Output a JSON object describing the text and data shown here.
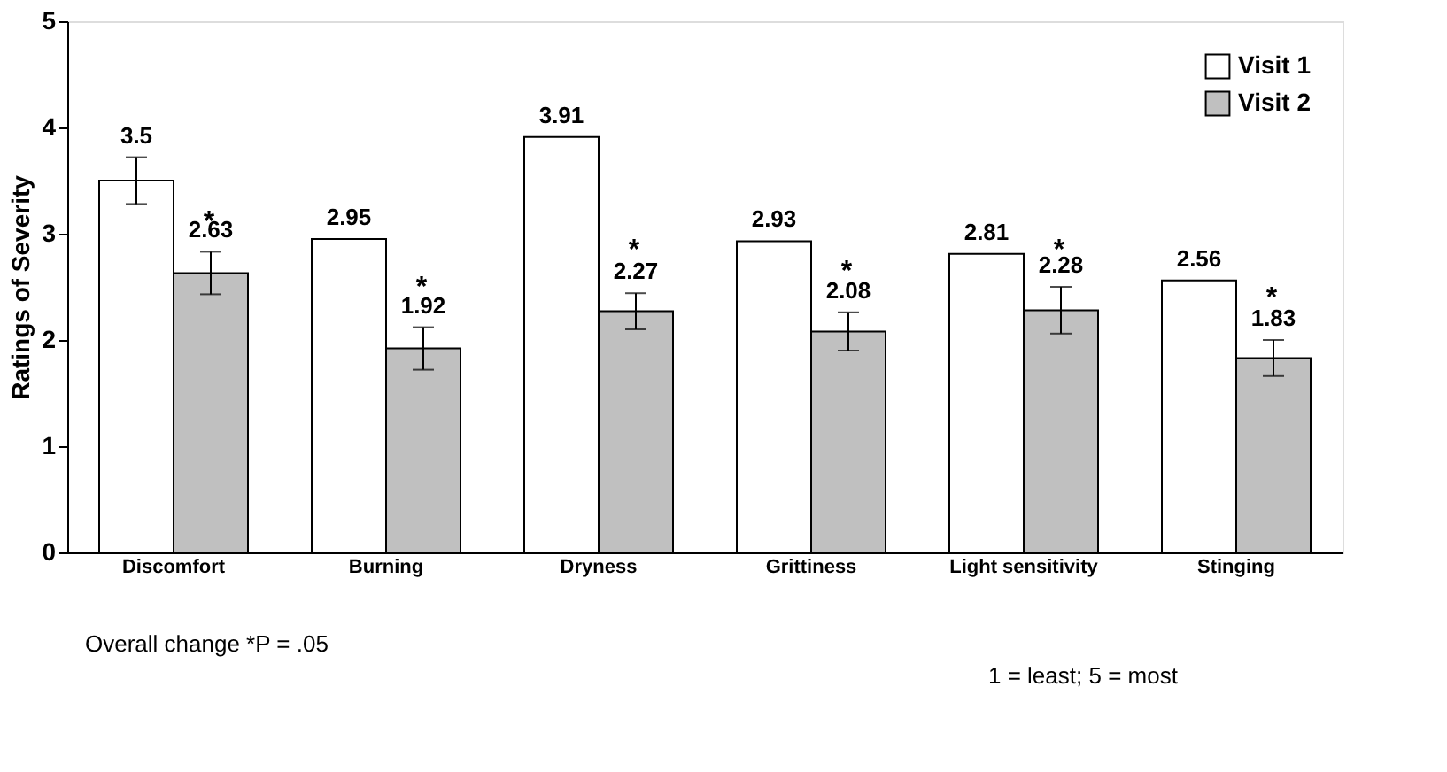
{
  "chart_data": {
    "type": "bar",
    "ylabel": "Ratings of Severity",
    "categories": [
      "Discomfort",
      "Burning",
      "Dryness",
      "Grittiness",
      "Light sensitivity",
      "Stinging"
    ],
    "series": [
      {
        "name": "Visit 1",
        "color": "#ffffff",
        "values": [
          3.5,
          2.95,
          3.91,
          2.93,
          2.81,
          2.56
        ],
        "errors": [
          0.22,
          null,
          null,
          null,
          null,
          null
        ]
      },
      {
        "name": "Visit 2",
        "color": "#c0c0c0",
        "values": [
          2.63,
          1.92,
          2.27,
          2.08,
          2.28,
          1.83
        ],
        "errors": [
          0.2,
          0.2,
          0.17,
          0.18,
          0.22,
          0.17
        ]
      }
    ],
    "ylim": [
      0,
      5
    ],
    "yticks": [
      0,
      1,
      2,
      3,
      4,
      5
    ],
    "grid": false,
    "legend": "top right",
    "data_labels": true,
    "annotations": [
      {
        "text": "*",
        "x": "Discomfort",
        "y": 3.12
      },
      {
        "text": "*",
        "x": "Burning",
        "y": 2.5
      },
      {
        "text": "*",
        "x": "Dryness",
        "y": 2.85
      },
      {
        "text": "*",
        "x": "Grittiness",
        "y": 2.65
      },
      {
        "text": "*",
        "x": "Light sensitivity",
        "y": 2.85
      },
      {
        "text": "*",
        "x": "Stinging",
        "y": 2.4
      },
      "Overall change *P = .05",
      "1 = least; 5 = most"
    ]
  }
}
